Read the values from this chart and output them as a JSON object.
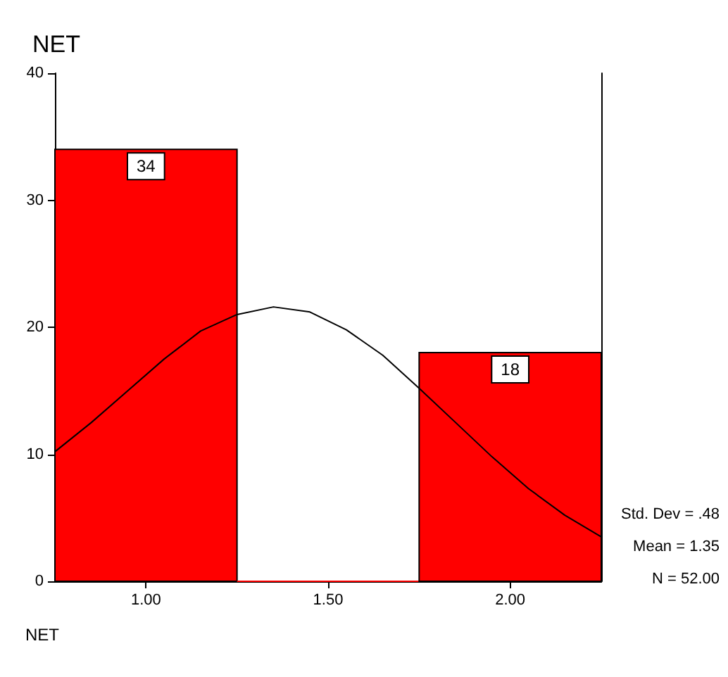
{
  "chart_data": {
    "type": "histogram",
    "title": "NET",
    "xlabel": "NET",
    "bins": [
      0.75,
      1.25,
      1.75,
      2.25
    ],
    "values": [
      34,
      0,
      18
    ],
    "color": "#ff0000",
    "value_labels": [
      "34",
      null,
      "18"
    ],
    "series": [
      {
        "type": "line",
        "color": "#000000",
        "x": [
          0.75,
          0.85,
          0.95,
          1.05,
          1.15,
          1.25,
          1.35,
          1.45,
          1.55,
          1.65,
          1.75,
          1.85,
          1.95,
          2.05,
          2.15,
          2.25
        ],
        "values": [
          10.2,
          12.5,
          15,
          17.5,
          19.7,
          21,
          21.6,
          21.2,
          19.8,
          17.8,
          15.2,
          12.5,
          9.8,
          7.3,
          5.2,
          3.5
        ]
      }
    ],
    "marker": "none",
    "grid": false,
    "xlim": [
      0.75,
      2.25
    ],
    "xticks": [
      {
        "value": 1,
        "label": "1.00"
      },
      {
        "value": 1.5,
        "label": "1.50"
      },
      {
        "value": 2,
        "label": "2.00"
      }
    ],
    "ylim": [
      0,
      40
    ],
    "yticks": [
      0,
      10,
      20,
      30,
      40
    ],
    "annotations": [
      "Std. Dev = .48",
      "Mean = 1.35",
      "N = 52.00"
    ]
  }
}
